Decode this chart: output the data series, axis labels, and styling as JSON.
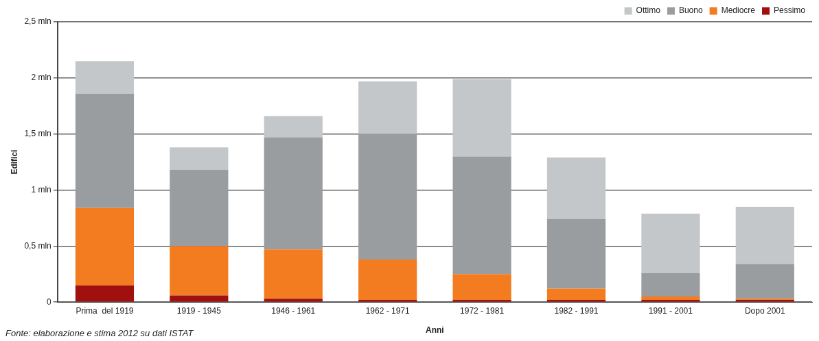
{
  "chart_data": {
    "type": "bar",
    "stacked": true,
    "ylabel": "Edifici",
    "xlabel": "Anni",
    "annotations": [
      "Fonte: elaborazione e stima 2012 su dati ISTAT"
    ],
    "categories": [
      "Prima  del 1919",
      "1919 - 1945",
      "1946 - 1961",
      "1962 - 1971",
      "1972 - 1981",
      "1982 - 1991",
      "1991 - 2001",
      "Dopo 2001"
    ],
    "series": [
      {
        "name": "Pessimo",
        "color": "#a0100f",
        "values": [
          0.15,
          0.06,
          0.03,
          0.02,
          0.02,
          0.02,
          0.02,
          0.02
        ]
      },
      {
        "name": "Mediocre",
        "color": "#f47c20",
        "values": [
          0.69,
          0.44,
          0.44,
          0.36,
          0.23,
          0.1,
          0.03,
          0.01
        ]
      },
      {
        "name": "Buono",
        "color": "#9a9d9f",
        "values": [
          1.02,
          0.68,
          1.0,
          1.12,
          1.05,
          0.62,
          0.21,
          0.31
        ]
      },
      {
        "name": "Ottimo",
        "color": "#c4c7c9",
        "values": [
          0.29,
          0.2,
          0.19,
          0.47,
          0.69,
          0.55,
          0.53,
          0.51
        ]
      }
    ],
    "ylim": [
      0,
      2.5
    ],
    "yticks": [
      {
        "value": 0,
        "label": "0"
      },
      {
        "value": 0.5,
        "label": "0,5 mln"
      },
      {
        "value": 1,
        "label": "1 mln"
      },
      {
        "value": 1.5,
        "label": "1,5 mln"
      },
      {
        "value": 2,
        "label": "2 mln"
      },
      {
        "value": 2.5,
        "label": "2,5 mln"
      }
    ],
    "grid": "y",
    "legend": "top right"
  }
}
